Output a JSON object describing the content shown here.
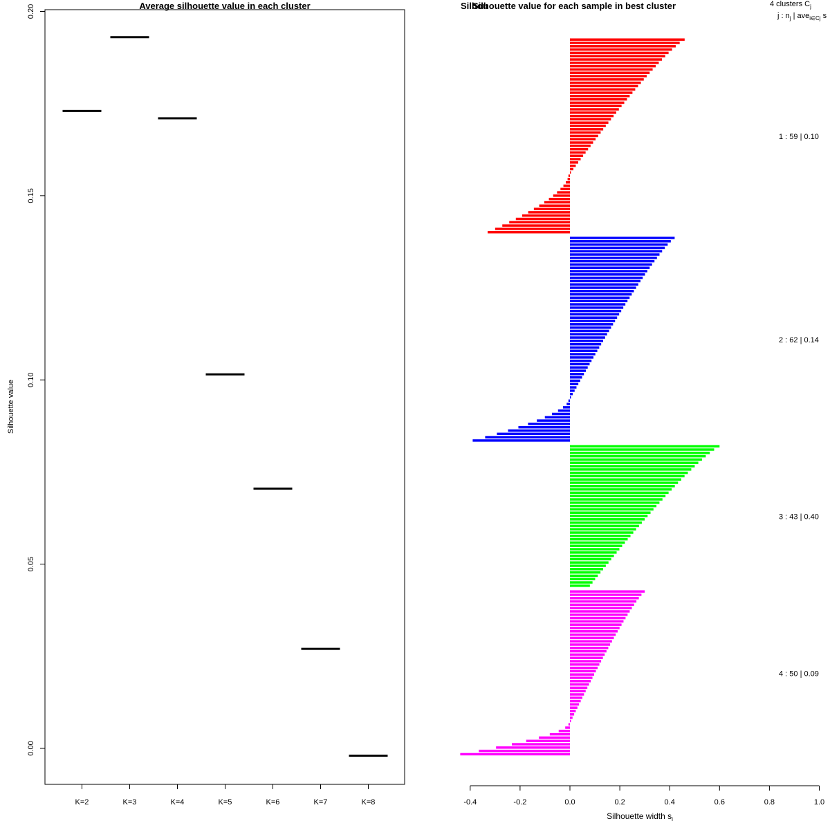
{
  "chart_data": [
    {
      "type": "line",
      "title": "Average silhouette value in each cluster",
      "xlabel": "",
      "ylabel": "Silhouette value",
      "ylim": [
        -0.01,
        0.201
      ],
      "yticks": [
        "0.00",
        "0.05",
        "0.10",
        "0.15",
        "0.20"
      ],
      "categories": [
        "K=2",
        "K=3",
        "K=4",
        "K=5",
        "K=6",
        "K=7",
        "K=8"
      ],
      "values": [
        0.173,
        0.193,
        0.171,
        0.1015,
        0.0705,
        0.027,
        -0.002
      ],
      "grid": false
    },
    {
      "type": "bar",
      "title": "Silhouette value for each sample in best cluster",
      "overlap_title": "Silhou",
      "xlabel": "Silhouette width s",
      "xlabel_sub": "i",
      "xlim": [
        -0.4,
        1.0
      ],
      "xticks": [
        "-0.4",
        "-0.2",
        "0.0",
        "0.2",
        "0.4",
        "0.6",
        "0.8",
        "1.0"
      ],
      "header_line1": "4  clusters  C",
      "header_line1_sub": "j",
      "header_line2": "j :  n",
      "header_line2_sub": "j",
      "header_line2_mid": " | ave",
      "header_line2_mid_sub": "i∈Cj",
      "header_line2_end": "  s",
      "series": [
        {
          "name": "1 :  59  |  0.10",
          "color": "#ff0000",
          "n": 59,
          "avg": 0.1,
          "top": 0.46,
          "min": -0.33,
          "npos": 41
        },
        {
          "name": "2 :  62  |  0.14",
          "color": "#0000ff",
          "n": 62,
          "avg": 0.14,
          "top": 0.42,
          "min": -0.39,
          "npos": 49
        },
        {
          "name": "3 :  43  |  0.40",
          "color": "#00ff00",
          "n": 43,
          "avg": 0.4,
          "top": 0.6,
          "min": 0.08,
          "npos": 43
        },
        {
          "name": "4 :  50  |  0.09",
          "color": "#ff00ff",
          "n": 50,
          "avg": 0.09,
          "top": 0.3,
          "min": -0.44,
          "npos": 40
        }
      ]
    }
  ]
}
